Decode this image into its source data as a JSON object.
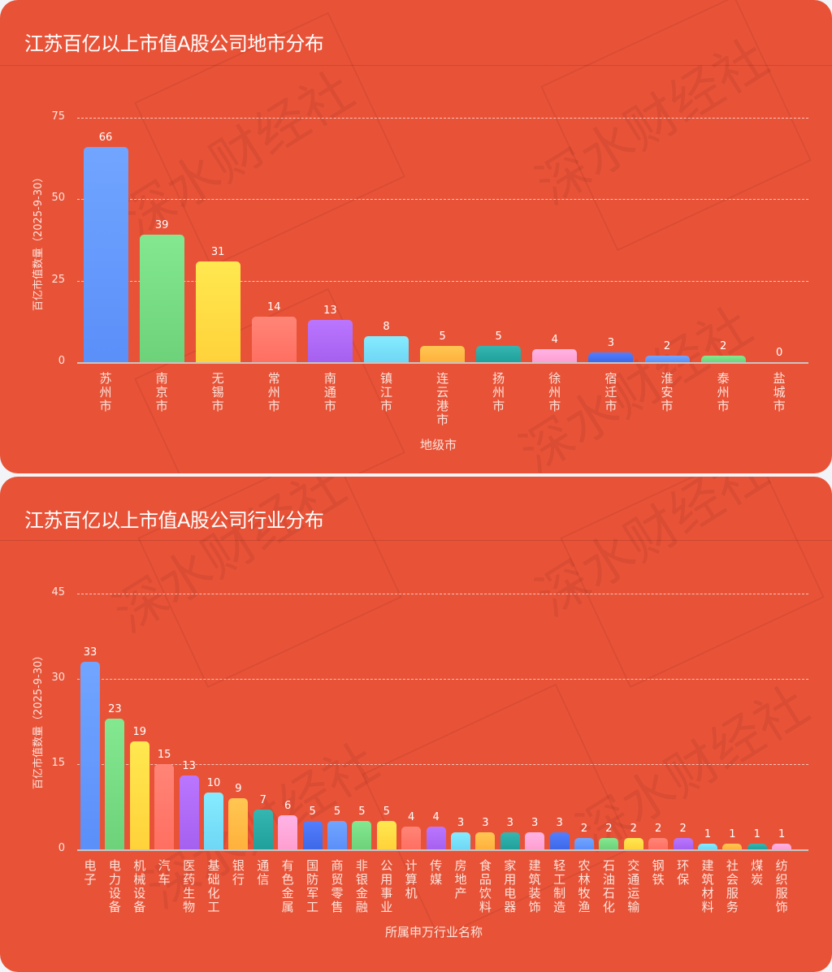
{
  "charts": {
    "city": {
      "title": "江苏百亿以上市值A股公司地市分布",
      "ylabel": "百亿市值数量（2025-9-30）",
      "xlabel": "地级市",
      "watermark": "深水财经社"
    },
    "industry": {
      "title": "江苏百亿以上市值A股公司行业分布",
      "ylabel": "百亿市值数量（2025-9-30）",
      "xlabel": "所属申万行业名称",
      "watermark": "深水财经社"
    }
  },
  "palette": [
    "#5b8ff9",
    "#6dd27a",
    "#ffd23a",
    "#ff6f61",
    "#a560ef",
    "#6fd6f5",
    "#ffb13c",
    "#1fa09b",
    "#ff9ed0",
    "#3d68e8"
  ],
  "chart_data": [
    {
      "type": "bar",
      "title": "江苏百亿以上市值A股公司地市分布",
      "xlabel": "地级市",
      "ylabel": "百亿市值数量（2025-9-30）",
      "ylim": [
        0,
        75
      ],
      "yticks": [
        0,
        25,
        50,
        75
      ],
      "grid": true,
      "legend": null,
      "categories": [
        "苏州市",
        "南京市",
        "无锡市",
        "常州市",
        "南通市",
        "镇江市",
        "连云港市",
        "扬州市",
        "徐州市",
        "宿迁市",
        "淮安市",
        "泰州市",
        "盐城市"
      ],
      "values": [
        66,
        39,
        31,
        14,
        13,
        8,
        5,
        5,
        4,
        3,
        2,
        2,
        0
      ]
    },
    {
      "type": "bar",
      "title": "江苏百亿以上市值A股公司行业分布",
      "xlabel": "所属申万行业名称",
      "ylabel": "百亿市值数量（2025-9-30）",
      "ylim": [
        0,
        45
      ],
      "yticks": [
        0,
        15,
        30,
        45
      ],
      "grid": true,
      "legend": null,
      "categories": [
        "电子",
        "电力设备",
        "机械设备",
        "汽车",
        "医药生物",
        "基础化工",
        "银行",
        "通信",
        "有色金属",
        "国防军工",
        "商贸零售",
        "非银金融",
        "公用事业",
        "计算机",
        "传媒",
        "房地产",
        "食品饮料",
        "家用电器",
        "建筑装饰",
        "轻工制造",
        "农林牧渔",
        "石油石化",
        "交通运输",
        "钢铁",
        "环保",
        "建筑材料",
        "社会服务",
        "煤炭",
        "纺织服饰"
      ],
      "values": [
        33,
        23,
        19,
        15,
        13,
        10,
        9,
        7,
        6,
        5,
        5,
        5,
        5,
        4,
        4,
        3,
        3,
        3,
        3,
        3,
        2,
        2,
        2,
        2,
        2,
        1,
        1,
        1,
        1
      ]
    }
  ]
}
